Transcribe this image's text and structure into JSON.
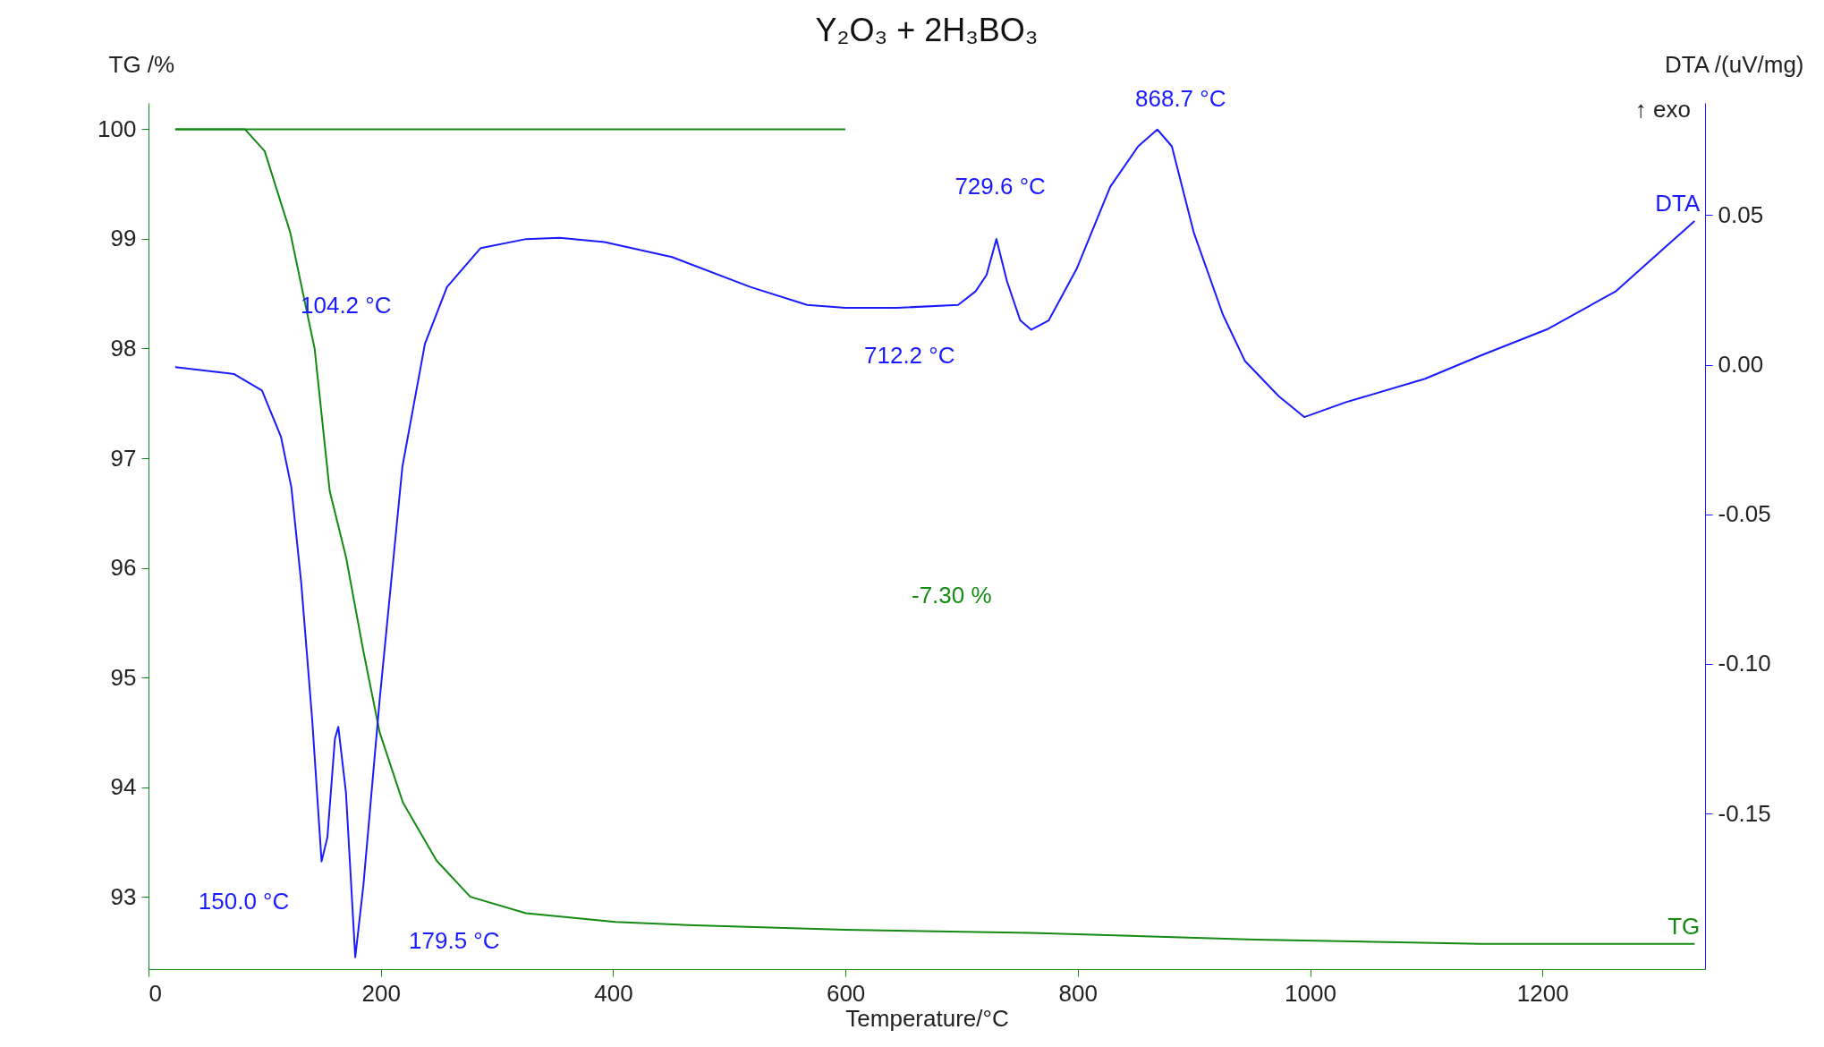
{
  "chart_data": {
    "type": "line",
    "title": "Y₂O₃ + 2H₃BO₃",
    "xlabel": "Temperature/°C",
    "ylabel": "TG /%",
    "y2label": "DTA /(uV/mg)",
    "xlim": [
      0,
      1340
    ],
    "xticks": [
      0,
      200,
      400,
      600,
      800,
      1000,
      1200
    ],
    "ylim": [
      92.34,
      100.24
    ],
    "yticks": [
      93,
      94,
      95,
      96,
      97,
      98,
      99,
      100
    ],
    "y2lim": [
      -0.202,
      0.0875
    ],
    "y2ticks": [
      {
        "value": -0.15,
        "label": "-0.15"
      },
      {
        "value": -0.1,
        "label": "-0.10"
      },
      -0.05,
      {
        "value": 0,
        "label": "0.00"
      },
      0.05
    ],
    "grid": false,
    "legend": "right",
    "marker": "none",
    "line_style": "solid",
    "series": [
      {
        "name": "TG",
        "color": "#138a13",
        "x": [
          23,
          83,
          100,
          122,
          143,
          156,
          170,
          185,
          199,
          219,
          248,
          277,
          325,
          402,
          470,
          600,
          760,
          953,
          1147,
          1331
        ],
        "values": [
          100,
          100,
          99.8,
          99.06,
          98.0,
          96.7,
          96.1,
          95.24,
          94.5,
          93.86,
          93.33,
          93.0,
          92.85,
          92.77,
          92.74,
          92.7,
          92.67,
          92.61,
          92.57,
          92.57
        ]
      },
      {
        "type": "line",
        "color": "#138a13",
        "x": [
          23,
          600
        ],
        "values": [
          100,
          100
        ]
      },
      {
        "name": "DTA",
        "color": "#1a1aff",
        "axis": "y2",
        "x": [
          23,
          73.5,
          97.7,
          114,
          123,
          131.5,
          141,
          149,
          154,
          160.5,
          163.4,
          170,
          178,
          185,
          199,
          218.6,
          238,
          257,
          286,
          325,
          354,
          392.6,
          450.7,
          518,
          567,
          600,
          644,
          697,
          712,
          721.5,
          730,
          739,
          750.5,
          760,
          775,
          799,
          828,
          852,
          868.5,
          881,
          900,
          925,
          944,
          973,
          995,
          1031,
          1099,
          1147,
          1205,
          1263,
          1302,
          1331
        ],
        "values": [
          -0.0008,
          -0.0031,
          -0.0086,
          -0.024,
          -0.041,
          -0.073,
          -0.119,
          -0.166,
          -0.158,
          -0.125,
          -0.121,
          -0.143,
          -0.198,
          -0.174,
          -0.112,
          -0.034,
          0.007,
          0.026,
          0.039,
          0.042,
          0.0424,
          0.041,
          0.036,
          0.026,
          0.02,
          0.019,
          0.019,
          0.02,
          0.0245,
          0.03,
          0.042,
          0.028,
          0.0148,
          0.0117,
          0.0148,
          0.032,
          0.0595,
          0.073,
          0.0786,
          0.073,
          0.044,
          0.0167,
          0.0012,
          -0.0105,
          -0.0175,
          -0.0125,
          -0.0047,
          0.0031,
          0.012,
          0.0245,
          0.038,
          0.048
        ]
      }
    ],
    "annotations": [
      "104.2 °C",
      {
        "text": "150.0 °C",
        "x": 150,
        "y": 93.32
      },
      {
        "text": "179.5 °C",
        "x": 179.5,
        "y": 92.46
      },
      "712.2 °C",
      {
        "text": "729.6 °C",
        "x": 729.6,
        "y": 99.0
      },
      {
        "text": "868.7 °C",
        "x": 868.7,
        "y": 100.0
      },
      "-7.30 %",
      "↑ exo"
    ]
  }
}
